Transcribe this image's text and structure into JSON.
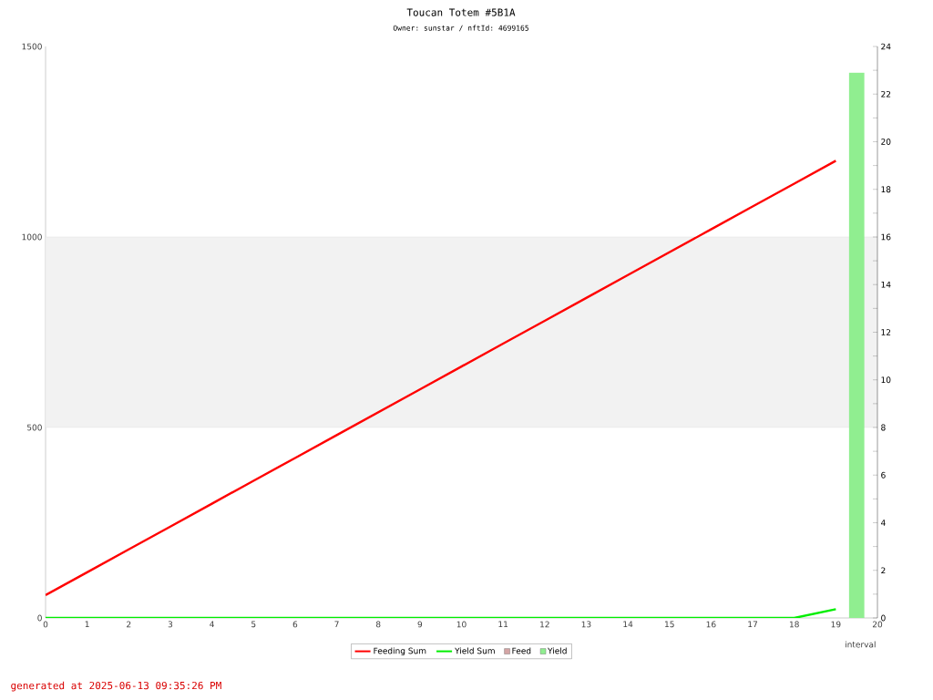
{
  "chart_data": {
    "type": "line",
    "title": "Toucan Totem #5B1A",
    "subtitle": "Owner: sunstar / nftId: 4699165",
    "xlabel": "interval",
    "x": [
      0,
      1,
      2,
      3,
      4,
      5,
      6,
      7,
      8,
      9,
      10,
      11,
      12,
      13,
      14,
      15,
      16,
      17,
      18,
      19
    ],
    "xlim": [
      0,
      20
    ],
    "xticks": [
      0,
      1,
      2,
      3,
      4,
      5,
      6,
      7,
      8,
      9,
      10,
      11,
      12,
      13,
      14,
      15,
      16,
      17,
      18,
      19,
      20
    ],
    "ylim": [
      0,
      1500
    ],
    "yticks": [
      0,
      500,
      1000,
      1500
    ],
    "y2lim": [
      0,
      24
    ],
    "y2ticks": [
      0,
      {
        "value": 1,
        "label": null
      },
      2,
      {
        "value": 3,
        "label": null
      },
      4,
      {
        "value": 5,
        "label": null
      },
      6,
      {
        "value": 7,
        "label": null
      },
      8,
      {
        "value": 9,
        "label": null
      },
      10,
      {
        "value": 11,
        "label": null
      },
      12,
      {
        "value": 13,
        "label": null
      },
      14,
      {
        "value": 15,
        "label": null
      },
      16,
      {
        "value": 17,
        "label": null
      },
      18,
      {
        "value": 19,
        "label": null
      },
      20,
      {
        "value": 21,
        "label": null
      },
      22,
      {
        "value": 23,
        "label": null
      },
      24
    ],
    "series": [
      {
        "name": "Feeding Sum",
        "color": "#ff0000",
        "values": [
          60,
          120,
          180,
          240,
          300,
          360,
          420,
          480,
          540,
          600,
          660,
          720,
          780,
          840,
          900,
          960,
          1020,
          1080,
          1140,
          1200
        ]
      },
      {
        "name": "Yield Sum",
        "color": "#00ee00",
        "values": [
          0,
          0,
          0,
          0,
          0,
          0,
          0,
          0,
          0,
          0,
          0,
          0,
          0,
          0,
          0,
          0,
          0,
          0,
          0,
          23
        ]
      },
      {
        "name": "Feed",
        "type": "bar",
        "axis": "y2",
        "color": "#d4a5a5",
        "values": [
          null,
          null,
          null,
          null,
          null,
          null,
          null,
          null,
          null,
          null,
          null,
          null,
          null,
          null,
          null,
          null,
          null,
          null,
          null,
          null
        ]
      },
      {
        "name": "Yield",
        "type": "bar",
        "axis": "y2",
        "color": "#90ee90",
        "x": [
          19.5
        ],
        "values": [
          22.9
        ]
      }
    ],
    "bands": [
      {
        "axis": "y",
        "from": 500,
        "to": 1000,
        "color": "#f2f2f2"
      }
    ],
    "legend": "bottom",
    "annotations": [
      "generated at 2025-06-13 09:35:26 PM"
    ]
  }
}
